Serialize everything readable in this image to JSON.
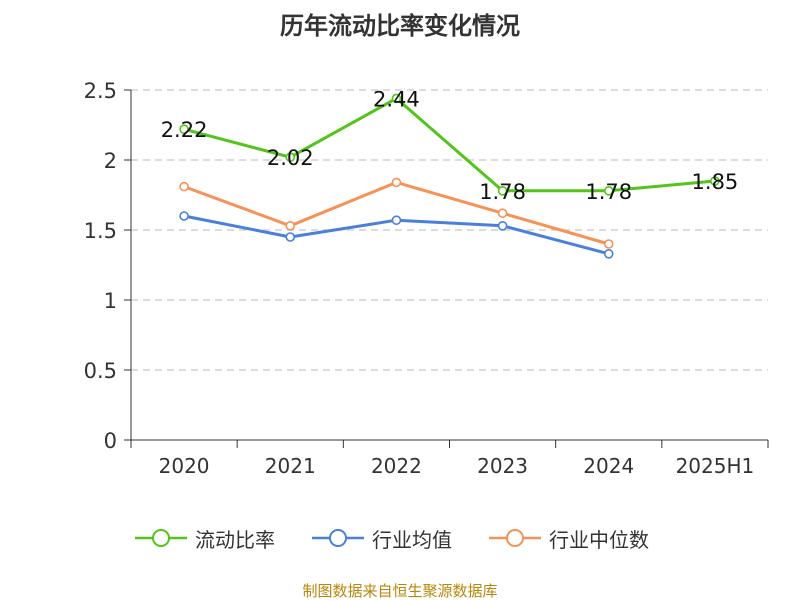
{
  "chart_data": {
    "type": "line",
    "title": "历年流动比率变化情况",
    "categories": [
      "2020",
      "2021",
      "2022",
      "2023",
      "2024",
      "2025H1"
    ],
    "y_ticks": [
      "0",
      "0.5",
      "1",
      "1.5",
      "2",
      "2.5"
    ],
    "ylim": [
      0,
      2.5
    ],
    "grid": true,
    "legend_position": "bottom",
    "series": [
      {
        "name": "流动比率",
        "color": "#52c41a",
        "labeled": true,
        "values": [
          2.22,
          2.02,
          2.44,
          1.78,
          1.78,
          1.85
        ],
        "labels": [
          "2.22",
          "2.02",
          "2.44",
          "1.78",
          "1.78",
          "1.85"
        ]
      },
      {
        "name": "行业均值",
        "color": "#4a7fdc",
        "labeled": false,
        "values": [
          1.6,
          1.45,
          1.57,
          1.53,
          1.33,
          null
        ]
      },
      {
        "name": "行业中位数",
        "color": "#f79256",
        "labeled": false,
        "values": [
          1.81,
          1.53,
          1.84,
          1.62,
          1.4,
          null
        ]
      }
    ]
  },
  "source_note": "制图数据来自恒生聚源数据库"
}
